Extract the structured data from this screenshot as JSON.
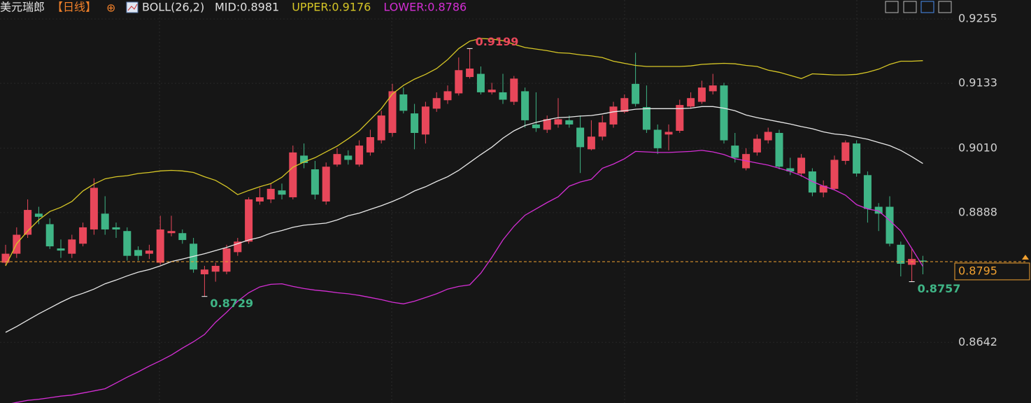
{
  "chart_data": {
    "type": "candlestick",
    "title": "美元瑞郎",
    "period": "【日线】",
    "indicator": "BOLL(26,2)",
    "up_color": "#e8475a",
    "down_color": "#3fb586",
    "ylim": [
      0.8527,
      0.9291
    ],
    "yticks": [
      0.9255,
      0.9133,
      {
        "value": 0.901,
        "label": "0.9010"
      },
      0.8888,
      0.8642
    ],
    "grid": true,
    "open": [
      0.8793,
      0.881,
      0.8846,
      0.8886,
      0.8866,
      0.882,
      0.881,
      0.8829,
      0.8856,
      0.8886,
      0.886,
      0.8853,
      0.8817,
      0.881,
      0.8793,
      0.8849,
      0.8849,
      0.8829,
      0.8771,
      0.8776,
      0.8776,
      0.8813,
      0.8833,
      0.8909,
      0.8913,
      0.893,
      0.8917,
      0.8996,
      0.897,
      0.8909,
      0.8979,
      0.8996,
      0.8979,
      0.9002,
      0.9025,
      0.9039,
      0.9112,
      0.9076,
      0.9036,
      0.9085,
      0.9101,
      0.9114,
      0.9145,
      0.9151,
      0.9116,
      0.9116,
      0.9098,
      0.9118,
      0.9055,
      0.9045,
      0.9055,
      0.9063,
      0.9049,
      0.9008,
      0.9032,
      0.9055,
      0.9079,
      0.9132,
      0.9088,
      0.9045,
      0.9036,
      0.9043,
      0.9089,
      0.9098,
      0.9118,
      0.9129,
      0.9015,
      0.8972,
      0.9002,
      0.9025,
      0.9039,
      0.8972,
      0.8962,
      0.8966,
      0.8926,
      0.8933,
      0.8986,
      0.9019,
      0.8959,
      0.8899,
      0.8899,
      0.8827,
      0.8789,
      0.8797
    ],
    "high": [
      0.8827,
      0.886,
      0.8913,
      0.8899,
      0.8877,
      0.8837,
      0.8846,
      0.8869,
      0.8953,
      0.8919,
      0.8869,
      0.886,
      0.8824,
      0.8827,
      0.8882,
      0.8882,
      0.8856,
      0.884,
      0.8787,
      0.8793,
      0.8827,
      0.884,
      0.8917,
      0.8935,
      0.8943,
      0.8943,
      0.9015,
      0.9019,
      0.8986,
      0.8983,
      0.901,
      0.9006,
      0.9025,
      0.9045,
      0.9081,
      0.9132,
      0.9125,
      0.9094,
      0.9098,
      0.9116,
      0.9129,
      0.9182,
      0.9199,
      0.9165,
      0.9134,
      0.9151,
      0.9147,
      0.9125,
      0.9116,
      0.9072,
      0.9105,
      0.9072,
      0.9072,
      0.9063,
      0.9072,
      0.9098,
      0.9112,
      0.9191,
      0.9129,
      0.9055,
      0.9055,
      0.9102,
      0.9116,
      0.9138,
      0.9151,
      0.9134,
      0.9039,
      0.901,
      0.9036,
      0.9049,
      0.9045,
      0.8992,
      0.8999,
      0.8972,
      0.8949,
      0.8996,
      0.9025,
      0.9025,
      0.8966,
      0.8906,
      0.8919,
      0.8833,
      0.882,
      0.8806
    ],
    "low": [
      0.8787,
      0.8802,
      0.884,
      0.8866,
      0.8819,
      0.8802,
      0.8802,
      0.8824,
      0.8846,
      0.8846,
      0.884,
      0.8797,
      0.8797,
      0.88,
      0.8789,
      0.8843,
      0.8829,
      0.8774,
      0.8729,
      0.8757,
      0.8771,
      0.8806,
      0.8829,
      0.8903,
      0.8906,
      0.8913,
      0.8913,
      0.8972,
      0.8913,
      0.8903,
      0.8975,
      0.8979,
      0.8975,
      0.8996,
      0.9019,
      0.9032,
      0.9076,
      0.9008,
      0.9019,
      0.9079,
      0.9094,
      0.911,
      0.9142,
      0.9112,
      0.9112,
      0.9094,
      0.9092,
      0.9049,
      0.9041,
      0.9039,
      0.9049,
      0.9049,
      0.8963,
      0.9006,
      0.9025,
      0.9049,
      0.9076,
      0.9089,
      0.9039,
      0.8999,
      0.9006,
      0.9039,
      0.9085,
      0.9094,
      0.9112,
      0.9019,
      0.8983,
      0.8968,
      0.8996,
      0.9019,
      0.897,
      0.8959,
      0.8956,
      0.8919,
      0.8917,
      0.893,
      0.8979,
      0.8956,
      0.8869,
      0.8853,
      0.8824,
      0.8767,
      0.8757,
      0.8771
    ],
    "close": [
      0.881,
      0.8846,
      0.8893,
      0.888,
      0.8824,
      0.8816,
      0.8837,
      0.886,
      0.8935,
      0.8856,
      0.8856,
      0.8806,
      0.8806,
      0.8816,
      0.8856,
      0.8853,
      0.8836,
      0.878,
      0.878,
      0.8787,
      0.882,
      0.8833,
      0.8913,
      0.8917,
      0.8933,
      0.8922,
      0.9002,
      0.8982,
      0.8922,
      0.8975,
      0.8999,
      0.8988,
      0.9015,
      0.9031,
      0.9072,
      0.9118,
      0.9081,
      0.9039,
      0.9089,
      0.9105,
      0.9118,
      0.9158,
      0.9161,
      0.9116,
      0.9121,
      0.9102,
      0.9142,
      0.9063,
      0.9048,
      0.9065,
      0.9065,
      0.9055,
      0.9012,
      0.9032,
      0.9059,
      0.9089,
      0.9105,
      0.9094,
      0.9045,
      0.901,
      0.9041,
      0.9092,
      0.9105,
      0.9125,
      0.9129,
      0.9025,
      0.8992,
      0.8999,
      0.9028,
      0.9041,
      0.8975,
      0.8966,
      0.8992,
      0.8926,
      0.8939,
      0.8988,
      0.9021,
      0.8962,
      0.8895,
      0.8886,
      0.8829,
      0.8791,
      0.88,
      0.8795
    ],
    "series": [
      {
        "name": "MID:0.8981",
        "color": "#e8e8e8",
        "values": [
          0.8661,
          0.8672,
          0.8684,
          0.8696,
          0.8707,
          0.8718,
          0.8728,
          0.8735,
          0.8743,
          0.8753,
          0.876,
          0.8768,
          0.8775,
          0.878,
          0.8787,
          0.8795,
          0.88,
          0.8805,
          0.881,
          0.8816,
          0.8822,
          0.8829,
          0.8836,
          0.8841,
          0.8849,
          0.8854,
          0.886,
          0.8864,
          0.8866,
          0.8868,
          0.8874,
          0.8882,
          0.8887,
          0.8894,
          0.8901,
          0.8909,
          0.8918,
          0.8929,
          0.8937,
          0.8947,
          0.8956,
          0.8968,
          0.8983,
          0.8998,
          0.9012,
          0.9029,
          0.9043,
          0.9053,
          0.9059,
          0.9064,
          0.9068,
          0.9069,
          0.9071,
          0.9072,
          0.9075,
          0.9079,
          0.9081,
          0.9084,
          0.9085,
          0.9085,
          0.9085,
          0.9085,
          0.9086,
          0.9089,
          0.9089,
          0.9086,
          0.9081,
          0.9073,
          0.9068,
          0.9064,
          0.906,
          0.9056,
          0.9051,
          0.9047,
          0.9041,
          0.9037,
          0.9035,
          0.9031,
          0.9027,
          0.9021,
          0.9015,
          0.9006,
          0.8994,
          0.8981
        ]
      },
      {
        "name": "UPPER:0.9176",
        "color": "#d6c626",
        "values": [
          0.8787,
          0.8829,
          0.8853,
          0.8874,
          0.889,
          0.8898,
          0.8909,
          0.8929,
          0.8942,
          0.8952,
          0.8956,
          0.8958,
          0.8962,
          0.8964,
          0.8967,
          0.8968,
          0.8967,
          0.8964,
          0.8956,
          0.8949,
          0.8937,
          0.8922,
          0.893,
          0.8937,
          0.8943,
          0.8955,
          0.8974,
          0.8984,
          0.8992,
          0.9003,
          0.9014,
          0.9028,
          0.9043,
          0.9064,
          0.9085,
          0.9113,
          0.9129,
          0.9141,
          0.915,
          0.9161,
          0.9178,
          0.9199,
          0.9213,
          0.9218,
          0.9217,
          0.9214,
          0.9207,
          0.9201,
          0.9198,
          0.9195,
          0.9191,
          0.919,
          0.9187,
          0.9185,
          0.9182,
          0.9175,
          0.9171,
          0.9167,
          0.9165,
          0.9165,
          0.9165,
          0.9165,
          0.9166,
          0.9169,
          0.917,
          0.9171,
          0.917,
          0.9167,
          0.9165,
          0.9158,
          0.9154,
          0.9148,
          0.9142,
          0.9151,
          0.915,
          0.9149,
          0.9149,
          0.915,
          0.9154,
          0.916,
          0.9169,
          0.9175,
          0.9175,
          0.9176
        ]
      },
      {
        "name": "LOWER:0.8786",
        "color": "#d42ed4",
        "values": [
          0.8524,
          0.8528,
          0.8532,
          0.8534,
          0.8537,
          0.854,
          0.8542,
          0.8546,
          0.855,
          0.8554,
          0.8565,
          0.8576,
          0.8586,
          0.8597,
          0.8607,
          0.8618,
          0.8631,
          0.8643,
          0.8657,
          0.868,
          0.8699,
          0.872,
          0.8736,
          0.8747,
          0.8752,
          0.8753,
          0.8748,
          0.8744,
          0.8741,
          0.8739,
          0.8736,
          0.8734,
          0.8731,
          0.8727,
          0.8723,
          0.8718,
          0.8715,
          0.872,
          0.8727,
          0.8734,
          0.8743,
          0.8748,
          0.8751,
          0.8773,
          0.8803,
          0.8836,
          0.8862,
          0.8883,
          0.8895,
          0.8907,
          0.8918,
          0.8938,
          0.8946,
          0.8951,
          0.8972,
          0.898,
          0.899,
          0.9004,
          0.9003,
          0.9002,
          0.9002,
          0.9003,
          0.9004,
          0.9006,
          0.9003,
          0.8998,
          0.899,
          0.8986,
          0.8982,
          0.8978,
          0.8972,
          0.8966,
          0.8958,
          0.8947,
          0.8938,
          0.8931,
          0.8921,
          0.8903,
          0.8895,
          0.8891,
          0.8873,
          0.8853,
          0.882,
          0.8786
        ]
      }
    ],
    "annotations": [
      {
        "value": 0.9199,
        "candle": 42,
        "color": "#e8475a"
      },
      {
        "value": 0.8729,
        "candle": 18,
        "color": "#3fb586"
      },
      {
        "value": 0.8757,
        "candle": 82,
        "color": "#3fb586"
      }
    ],
    "last_price": 0.8795,
    "last_price_color": "#f0a030"
  }
}
